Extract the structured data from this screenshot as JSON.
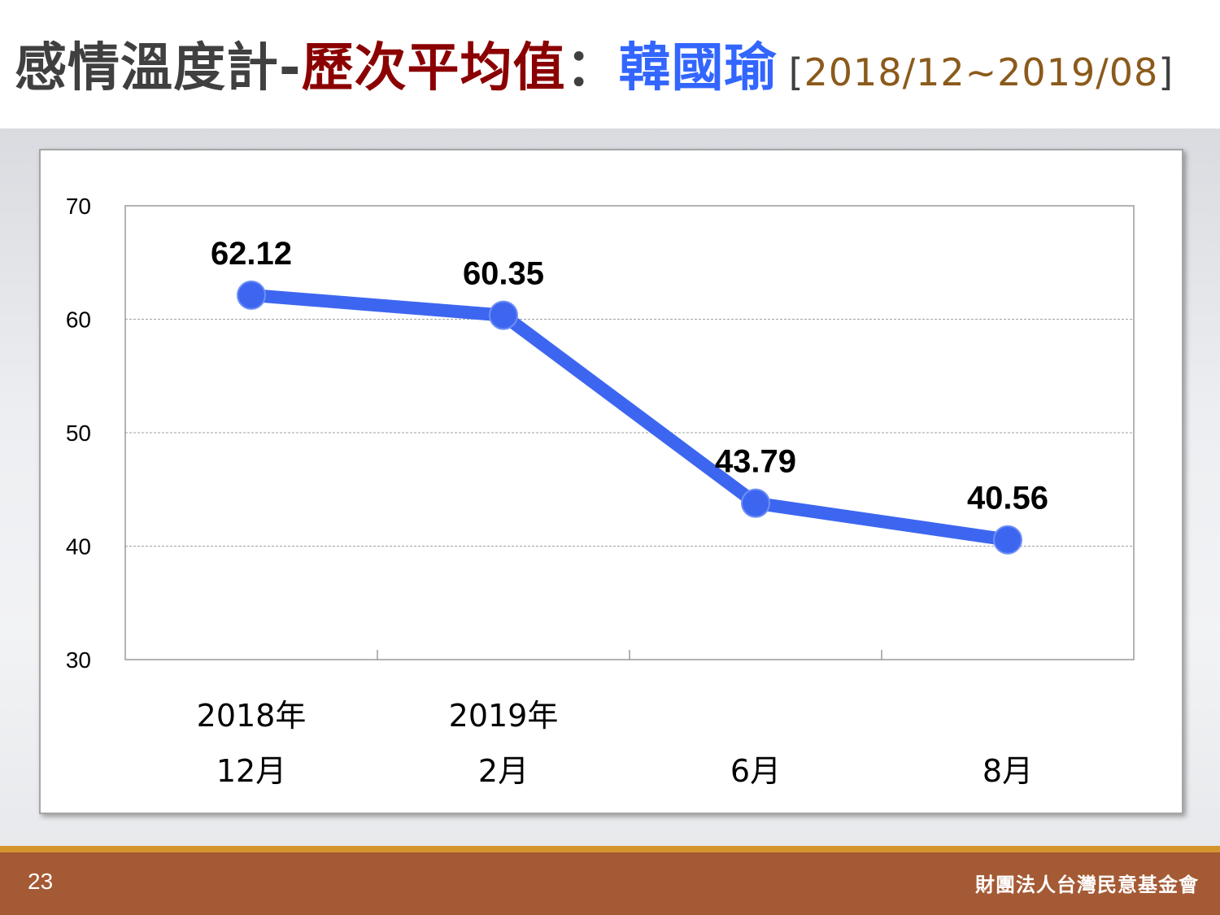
{
  "title": {
    "part1": "感情溫度計-",
    "part2": "歷次平均值",
    "part3": "：",
    "part4": "韓國瑜",
    "bracket_open": "[",
    "range": "2018/12~2019/08",
    "bracket_close": "]"
  },
  "footer": {
    "page_number": "23",
    "organization": "財團法人台灣民意基金會"
  },
  "colors": {
    "line": "#3d66f0",
    "title_red": "#8b0000",
    "title_blue": "#3366ff",
    "range_brown": "#8b5a1b",
    "footer_bar": "#a45a34",
    "footer_line": "#d4952c"
  },
  "chart_data": {
    "type": "line",
    "categories": [
      [
        "2018年",
        "12月"
      ],
      [
        "2019年",
        "2月"
      ],
      [
        "",
        "6月"
      ],
      [
        "",
        "8月"
      ]
    ],
    "series": [
      {
        "values": [
          62.12,
          60.35,
          43.79,
          40.56
        ]
      }
    ],
    "data_labels": [
      "62.12",
      "60.35",
      "43.79",
      "40.56"
    ],
    "ylim": [
      30,
      70
    ],
    "yticks": [
      30,
      40,
      50,
      60,
      70
    ],
    "ytick_labels": [
      "30",
      "40",
      "50",
      "60",
      "70"
    ],
    "grid": true,
    "legend": "none"
  }
}
